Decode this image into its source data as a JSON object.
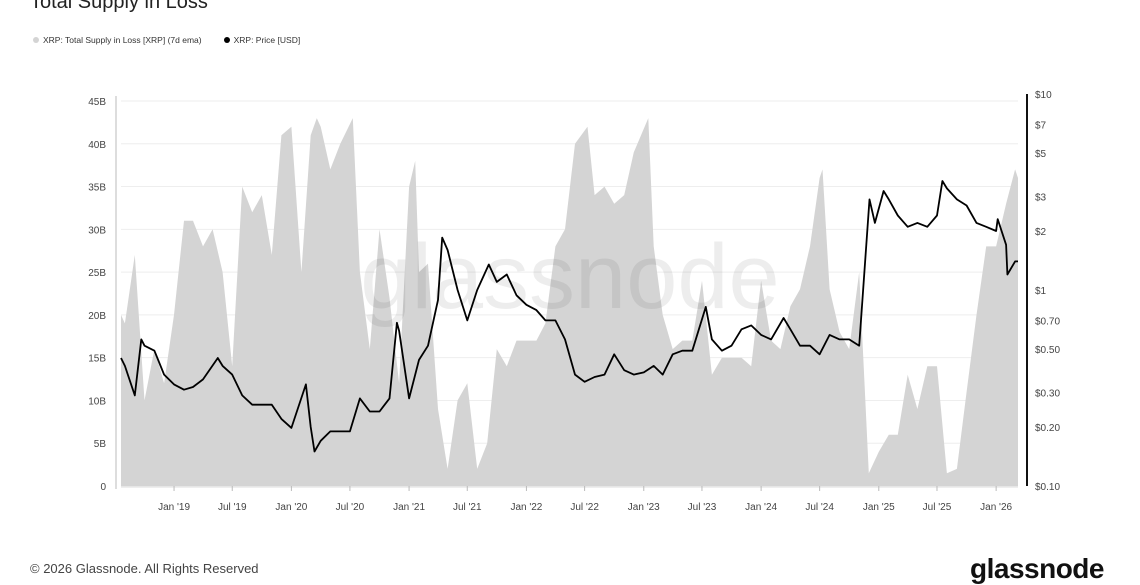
{
  "chart_data": {
    "type": "area+line",
    "title": "Total Supply in Loss",
    "legend_position": "top-left",
    "grid": true,
    "colors": {
      "supply": "#d4d4d4",
      "price": "#000000",
      "grid": "#eeeeee"
    },
    "x_ticks": [
      "Jan '19",
      "Jul '19",
      "Jan '20",
      "Jul '20",
      "Jan '21",
      "Jul '21",
      "Jan '22",
      "Jul '22",
      "Jan '23",
      "Jul '23",
      "Jan '24",
      "Jul '24",
      "Jan '25",
      "Jul '25",
      "Jan '26"
    ],
    "x_tick_dates": [
      "2019-01-01",
      "2019-07-01",
      "2020-01-01",
      "2020-07-01",
      "2021-01-01",
      "2021-07-01",
      "2022-01-01",
      "2022-07-01",
      "2023-01-01",
      "2023-07-01",
      "2024-01-01",
      "2024-07-01",
      "2025-01-01",
      "2025-07-01",
      "2026-01-01"
    ],
    "xlim": [
      "2018-07-20",
      "2026-03-10"
    ],
    "y_left": {
      "scale": "linear",
      "lim": [
        0,
        45
      ],
      "unit": "B",
      "ticks": [
        "0",
        "5B",
        "10B",
        "15B",
        "20B",
        "25B",
        "30B",
        "35B",
        "40B",
        "45B"
      ],
      "tick_values": [
        0,
        5,
        10,
        15,
        20,
        25,
        30,
        35,
        40,
        45
      ]
    },
    "y_right": {
      "scale": "log",
      "lim": [
        0.1,
        10
      ],
      "ticks": [
        "$0.10",
        "$0.20",
        "$0.30",
        "$0.50",
        "$0.70",
        "$1",
        "$2",
        "$3",
        "$5",
        "$7",
        "$10"
      ],
      "tick_values": [
        0.1,
        0.2,
        0.3,
        0.5,
        0.7,
        1,
        2,
        3,
        5,
        7,
        10
      ]
    },
    "series": [
      {
        "name": "XRP: Total Supply in Loss [XRP] (7d ema)",
        "type": "area",
        "axis": "left",
        "unit": "B XRP",
        "points": [
          [
            "2018-07-20",
            20
          ],
          [
            "2018-08-01",
            19
          ],
          [
            "2018-09-01",
            27
          ],
          [
            "2018-10-01",
            10
          ],
          [
            "2018-11-01",
            16
          ],
          [
            "2018-12-01",
            12
          ],
          [
            "2019-01-01",
            20
          ],
          [
            "2019-02-01",
            31
          ],
          [
            "2019-03-01",
            31
          ],
          [
            "2019-04-01",
            28
          ],
          [
            "2019-05-01",
            30
          ],
          [
            "2019-06-01",
            25
          ],
          [
            "2019-07-01",
            14
          ],
          [
            "2019-08-01",
            35
          ],
          [
            "2019-09-01",
            32
          ],
          [
            "2019-10-01",
            34
          ],
          [
            "2019-11-01",
            27
          ],
          [
            "2019-12-01",
            41
          ],
          [
            "2020-01-01",
            42
          ],
          [
            "2020-02-01",
            25
          ],
          [
            "2020-03-01",
            41
          ],
          [
            "2020-03-20",
            43
          ],
          [
            "2020-04-01",
            42
          ],
          [
            "2020-05-01",
            37
          ],
          [
            "2020-06-01",
            40
          ],
          [
            "2020-07-10",
            43
          ],
          [
            "2020-08-01",
            25
          ],
          [
            "2020-09-01",
            16
          ],
          [
            "2020-10-01",
            30
          ],
          [
            "2020-11-01",
            22
          ],
          [
            "2020-12-01",
            12
          ],
          [
            "2021-01-01",
            35
          ],
          [
            "2021-01-20",
            38
          ],
          [
            "2021-02-01",
            25
          ],
          [
            "2021-03-01",
            26
          ],
          [
            "2021-04-01",
            9
          ],
          [
            "2021-05-01",
            2
          ],
          [
            "2021-06-01",
            10
          ],
          [
            "2021-07-01",
            12
          ],
          [
            "2021-08-01",
            2
          ],
          [
            "2021-09-01",
            5
          ],
          [
            "2021-10-01",
            16
          ],
          [
            "2021-11-01",
            14
          ],
          [
            "2021-12-01",
            17
          ],
          [
            "2022-01-01",
            17
          ],
          [
            "2022-02-01",
            17
          ],
          [
            "2022-03-01",
            19
          ],
          [
            "2022-04-01",
            28
          ],
          [
            "2022-05-01",
            30
          ],
          [
            "2022-06-01",
            40
          ],
          [
            "2022-07-10",
            42
          ],
          [
            "2022-08-01",
            34
          ],
          [
            "2022-09-01",
            35
          ],
          [
            "2022-10-01",
            33
          ],
          [
            "2022-11-01",
            34
          ],
          [
            "2022-12-01",
            39
          ],
          [
            "2023-01-15",
            43
          ],
          [
            "2023-02-01",
            28
          ],
          [
            "2023-03-01",
            20
          ],
          [
            "2023-04-01",
            16
          ],
          [
            "2023-05-01",
            17
          ],
          [
            "2023-06-01",
            17
          ],
          [
            "2023-07-01",
            24
          ],
          [
            "2023-08-01",
            13
          ],
          [
            "2023-09-01",
            15
          ],
          [
            "2023-10-01",
            15
          ],
          [
            "2023-11-01",
            15
          ],
          [
            "2023-12-01",
            14
          ],
          [
            "2024-01-01",
            24
          ],
          [
            "2024-02-01",
            17
          ],
          [
            "2024-03-01",
            16
          ],
          [
            "2024-04-01",
            21
          ],
          [
            "2024-05-01",
            23
          ],
          [
            "2024-06-01",
            28
          ],
          [
            "2024-07-01",
            36
          ],
          [
            "2024-07-10",
            37
          ],
          [
            "2024-08-01",
            23
          ],
          [
            "2024-09-01",
            18
          ],
          [
            "2024-10-01",
            16
          ],
          [
            "2024-11-01",
            25
          ],
          [
            "2024-12-01",
            1.5
          ],
          [
            "2025-01-01",
            4
          ],
          [
            "2025-02-01",
            6
          ],
          [
            "2025-03-01",
            6
          ],
          [
            "2025-04-01",
            13
          ],
          [
            "2025-05-01",
            9
          ],
          [
            "2025-06-01",
            14
          ],
          [
            "2025-07-01",
            14
          ],
          [
            "2025-08-01",
            1.5
          ],
          [
            "2025-09-01",
            2
          ],
          [
            "2025-10-01",
            11
          ],
          [
            "2025-11-01",
            20
          ],
          [
            "2025-12-01",
            28
          ],
          [
            "2026-01-01",
            28
          ],
          [
            "2026-02-01",
            33
          ],
          [
            "2026-03-01",
            37
          ],
          [
            "2026-03-10",
            36
          ]
        ]
      },
      {
        "name": "XRP: Price [USD]",
        "type": "line",
        "axis": "right",
        "unit": "USD",
        "points": [
          [
            "2018-07-20",
            0.45
          ],
          [
            "2018-08-01",
            0.41
          ],
          [
            "2018-09-01",
            0.29
          ],
          [
            "2018-09-21",
            0.56
          ],
          [
            "2018-10-01",
            0.52
          ],
          [
            "2018-11-01",
            0.49
          ],
          [
            "2018-12-01",
            0.37
          ],
          [
            "2019-01-01",
            0.33
          ],
          [
            "2019-02-01",
            0.31
          ],
          [
            "2019-03-01",
            0.32
          ],
          [
            "2019-04-01",
            0.35
          ],
          [
            "2019-05-17",
            0.45
          ],
          [
            "2019-06-01",
            0.41
          ],
          [
            "2019-07-01",
            0.37
          ],
          [
            "2019-08-01",
            0.29
          ],
          [
            "2019-09-01",
            0.26
          ],
          [
            "2019-10-01",
            0.26
          ],
          [
            "2019-11-01",
            0.26
          ],
          [
            "2019-12-01",
            0.22
          ],
          [
            "2020-01-01",
            0.198
          ],
          [
            "2020-02-15",
            0.33
          ],
          [
            "2020-03-01",
            0.2
          ],
          [
            "2020-03-13",
            0.15
          ],
          [
            "2020-04-01",
            0.17
          ],
          [
            "2020-05-01",
            0.19
          ],
          [
            "2020-06-01",
            0.19
          ],
          [
            "2020-07-01",
            0.19
          ],
          [
            "2020-08-01",
            0.28
          ],
          [
            "2020-09-01",
            0.24
          ],
          [
            "2020-10-01",
            0.24
          ],
          [
            "2020-11-01",
            0.28
          ],
          [
            "2020-11-24",
            0.68
          ],
          [
            "2020-12-01",
            0.62
          ],
          [
            "2021-01-01",
            0.28
          ],
          [
            "2021-02-01",
            0.44
          ],
          [
            "2021-03-01",
            0.52
          ],
          [
            "2021-04-01",
            0.89
          ],
          [
            "2021-04-14",
            1.85
          ],
          [
            "2021-05-01",
            1.6
          ],
          [
            "2021-06-01",
            1.0
          ],
          [
            "2021-07-01",
            0.7
          ],
          [
            "2021-08-01",
            1.0
          ],
          [
            "2021-09-06",
            1.35
          ],
          [
            "2021-10-01",
            1.1
          ],
          [
            "2021-11-01",
            1.2
          ],
          [
            "2021-12-01",
            0.94
          ],
          [
            "2022-01-01",
            0.84
          ],
          [
            "2022-02-01",
            0.79
          ],
          [
            "2022-03-01",
            0.7
          ],
          [
            "2022-04-01",
            0.7
          ],
          [
            "2022-05-01",
            0.56
          ],
          [
            "2022-06-01",
            0.37
          ],
          [
            "2022-07-01",
            0.34
          ],
          [
            "2022-08-01",
            0.36
          ],
          [
            "2022-09-01",
            0.37
          ],
          [
            "2022-10-01",
            0.47
          ],
          [
            "2022-11-01",
            0.39
          ],
          [
            "2022-12-01",
            0.37
          ],
          [
            "2023-01-01",
            0.38
          ],
          [
            "2023-02-01",
            0.41
          ],
          [
            "2023-03-01",
            0.37
          ],
          [
            "2023-04-01",
            0.47
          ],
          [
            "2023-05-01",
            0.49
          ],
          [
            "2023-06-01",
            0.49
          ],
          [
            "2023-07-13",
            0.82
          ],
          [
            "2023-08-01",
            0.56
          ],
          [
            "2023-09-01",
            0.49
          ],
          [
            "2023-10-01",
            0.52
          ],
          [
            "2023-11-01",
            0.63
          ],
          [
            "2023-12-01",
            0.66
          ],
          [
            "2024-01-01",
            0.59
          ],
          [
            "2024-02-01",
            0.56
          ],
          [
            "2024-03-11",
            0.72
          ],
          [
            "2024-04-01",
            0.63
          ],
          [
            "2024-05-01",
            0.52
          ],
          [
            "2024-06-01",
            0.52
          ],
          [
            "2024-07-01",
            0.47
          ],
          [
            "2024-08-01",
            0.59
          ],
          [
            "2024-09-01",
            0.56
          ],
          [
            "2024-10-01",
            0.56
          ],
          [
            "2024-11-01",
            0.52
          ],
          [
            "2024-12-03",
            2.9
          ],
          [
            "2024-12-20",
            2.2
          ],
          [
            "2025-01-16",
            3.2
          ],
          [
            "2025-02-01",
            2.9
          ],
          [
            "2025-03-01",
            2.4
          ],
          [
            "2025-04-01",
            2.1
          ],
          [
            "2025-05-01",
            2.2
          ],
          [
            "2025-06-01",
            2.1
          ],
          [
            "2025-07-01",
            2.4
          ],
          [
            "2025-07-18",
            3.6
          ],
          [
            "2025-08-01",
            3.3
          ],
          [
            "2025-09-01",
            2.9
          ],
          [
            "2025-10-01",
            2.7
          ],
          [
            "2025-11-01",
            2.2
          ],
          [
            "2025-12-01",
            2.1
          ],
          [
            "2026-01-01",
            2.0
          ],
          [
            "2026-01-06",
            2.3
          ],
          [
            "2026-02-01",
            1.7
          ],
          [
            "2026-02-05",
            1.2
          ],
          [
            "2026-03-01",
            1.4
          ],
          [
            "2026-03-10",
            1.4
          ]
        ]
      }
    ]
  },
  "legend": {
    "supply_label": "XRP: Total Supply in Loss [XRP] (7d ema)",
    "price_label": "XRP: Price [USD]"
  },
  "watermark": "glassnode",
  "footer": {
    "copyright": "© 2026 Glassnode. All Rights Reserved",
    "logo": "glassnode"
  }
}
